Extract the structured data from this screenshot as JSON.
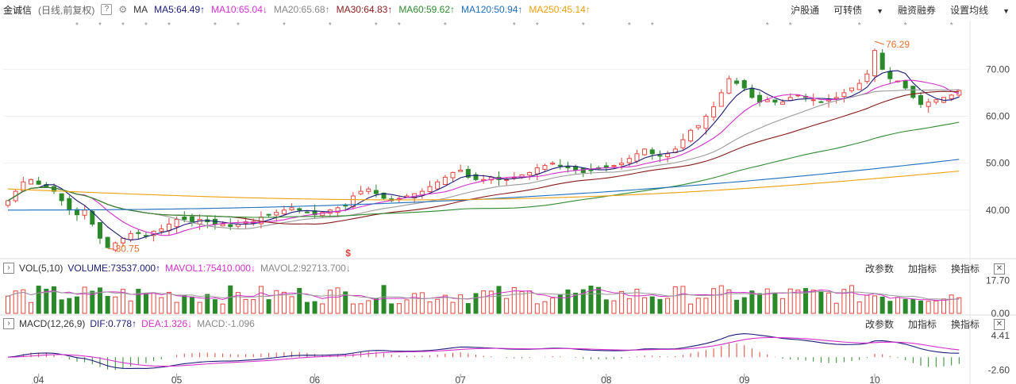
{
  "header": {
    "stock_name": "金诚信",
    "mode": "(日线,前复权)",
    "help": "?",
    "ma_label": "MA",
    "ma5": "MA5:64.49",
    "ma10": "MA10:65.04",
    "ma20": "MA20:65.68",
    "ma30": "MA30:64.83",
    "ma60": "MA60:59.62",
    "ma120": "MA120:50.94",
    "ma250": "MA250:45.14",
    "menu": [
      "沪股通",
      "可转债",
      "融资融券",
      "设置均线"
    ]
  },
  "colors": {
    "up": "#e8453c",
    "down": "#2a8a2a",
    "ma5": "#1a1a7a",
    "ma10": "#d62fcd",
    "ma20": "#9a9a9a",
    "ma30": "#8b1a1a",
    "ma60": "#2e8b2e",
    "ma120": "#1e6fc0",
    "ma250": "#f0a010"
  },
  "volume_panel": {
    "title": "VOL(5,10)",
    "volume": "VOLUME:73537.000",
    "mavol1": "MAVOL1:75410.000",
    "mavol2": "MAVOL2:92713.700",
    "tools": [
      "改参数",
      "加指标",
      "换指标"
    ]
  },
  "macd_panel": {
    "title": "MACD(12,26,9)",
    "dif": "DIF:0.778",
    "dea": "DEA:1.326",
    "macd": "MACD:-1.096",
    "tools": [
      "改参数",
      "加指标",
      "换指标"
    ]
  },
  "chart_data": {
    "type": "candlestick",
    "price_axis_ticks": [
      "70.00",
      "60.00",
      "50.00",
      "40.00"
    ],
    "price_ylim": [
      31,
      78
    ],
    "volume_axis_ticks": [
      "17.70",
      "0.00"
    ],
    "volume_ylim": [
      0,
      20
    ],
    "macd_axis_ticks": [
      "4.41",
      "-2.60"
    ],
    "macd_ylim": [
      -3.2,
      5.2
    ],
    "x_ticks": [
      "04",
      "05",
      "06",
      "07",
      "08",
      "09",
      "10"
    ],
    "max_label": "76.29",
    "min_label": "30.75",
    "dividend_marker": "$",
    "close_series": [
      42,
      44,
      46,
      46.5,
      45.5,
      45,
      44,
      42,
      40,
      39,
      40,
      37,
      34,
      32,
      33,
      34,
      35,
      35,
      34.5,
      35.5,
      36,
      37,
      38,
      38,
      37.5,
      38,
      37.5,
      37,
      37,
      36.5,
      37,
      37.5,
      37.5,
      38.5,
      39,
      39.5,
      40,
      40.5,
      40,
      39.5,
      39,
      39.5,
      40,
      40.5,
      41,
      43,
      44,
      44.5,
      43.5,
      42.5,
      42,
      42.5,
      43,
      43.5,
      44,
      45,
      46,
      47,
      48,
      48.5,
      47,
      46.5,
      46.5,
      47,
      46.5,
      46.5,
      47,
      47.5,
      48,
      49,
      49.5,
      50,
      49.5,
      49,
      48.5,
      48,
      48.5,
      49,
      49,
      49.5,
      50,
      51,
      52,
      53,
      52,
      51.5,
      52,
      53,
      55,
      57,
      58,
      60,
      62,
      65,
      68,
      67,
      66,
      64,
      63,
      63.5,
      63,
      63,
      64,
      64.5,
      64,
      63.5,
      63,
      63.5,
      64,
      65,
      66,
      67,
      69,
      74,
      70,
      68,
      67.5,
      66,
      64,
      62.5,
      63,
      63.5,
      64,
      64.5,
      65.5
    ]
  }
}
